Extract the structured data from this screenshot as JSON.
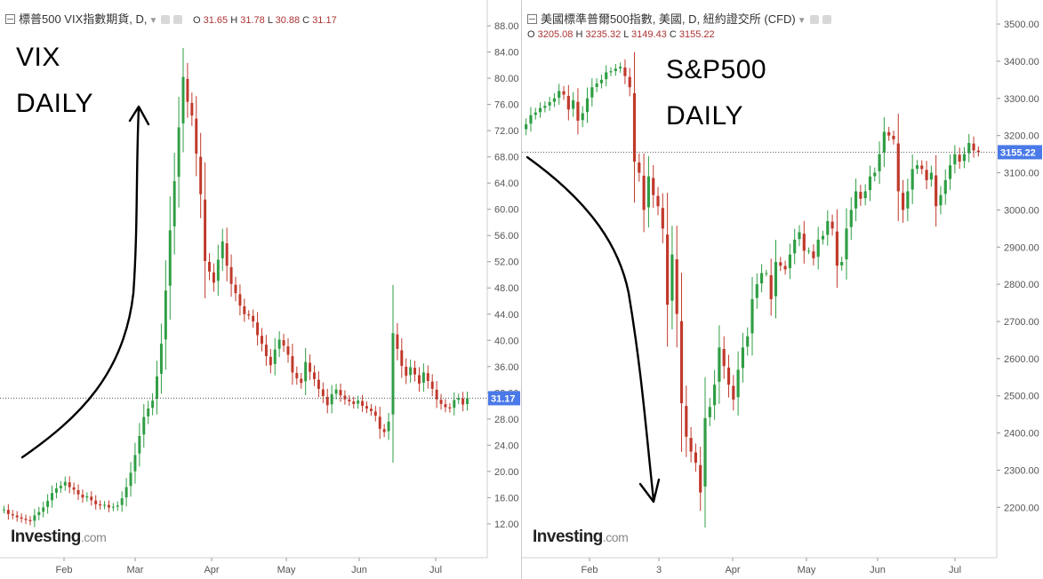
{
  "chart_data": [
    {
      "type": "candlestick",
      "title": "標普500 VIX指數期貨, D,",
      "ohlc_labels": {
        "o": "31.65",
        "h": "31.78",
        "l": "30.88",
        "c": "31.17"
      },
      "annotation_lines": [
        "VIX",
        "DAILY"
      ],
      "watermark": "Investing",
      "watermark_suffix": ".com",
      "last_price": "31.17",
      "y_ticks": [
        "88.00",
        "84.00",
        "80.00",
        "76.00",
        "72.00",
        "68.00",
        "64.00",
        "60.00",
        "56.00",
        "52.00",
        "48.00",
        "44.00",
        "40.00",
        "36.00",
        "32.00",
        "28.00",
        "24.00",
        "20.00",
        "16.00",
        "12.00"
      ],
      "x_ticks": [
        "Feb",
        "Mar",
        "Apr",
        "May",
        "Jun",
        "Jul"
      ],
      "ylim": [
        10.9,
        89.5
      ],
      "close_series": [
        14.2,
        13.5,
        13.3,
        13.0,
        12.8,
        12.6,
        12.4,
        13.3,
        13.8,
        14.5,
        15.5,
        16.7,
        17.4,
        17.8,
        18.4,
        17.6,
        17.2,
        16.5,
        16.0,
        16.2,
        15.6,
        15.0,
        14.8,
        14.9,
        14.5,
        14.6,
        14.8,
        15.9,
        17.6,
        19.8,
        22.5,
        25.4,
        28.3,
        29.6,
        30.8,
        34.5,
        39.5,
        47.6,
        56.8,
        64.3,
        72.5,
        80.2,
        76.4,
        74.3,
        68.5,
        62.3,
        52.1,
        50.5,
        48.8,
        52.3,
        55.1,
        51.4,
        48.6,
        47.2,
        45.3,
        44.0,
        43.8,
        42.9,
        40.8,
        39.5,
        37.6,
        36.2,
        38.6,
        40.1,
        39.2,
        37.8,
        35.1,
        34.2,
        33.5,
        36.7,
        35.2,
        34.1,
        32.6,
        31.5,
        30.1,
        31.8,
        32.5,
        31.6,
        31.0,
        30.7,
        30.3,
        30.8,
        30.0,
        29.6,
        29.2,
        28.5,
        26.5,
        26.0,
        27.6,
        41.1,
        38.7,
        36.1,
        34.6,
        35.9,
        34.8,
        33.4,
        35.1,
        33.8,
        32.6,
        31.0,
        30.3,
        29.8,
        29.6,
        30.9,
        31.2,
        30.2,
        31.17
      ]
    },
    {
      "type": "candlestick",
      "title": "美國標準普爾500指數, 美國, D, 紐約證交所 (CFD)",
      "ohlc_labels": {
        "o": "3205.08",
        "h": "3235.32",
        "l": "3149.43",
        "c": "3155.22"
      },
      "annotation_lines": [
        "S&P500",
        "DAILY"
      ],
      "watermark": "Investing",
      "watermark_suffix": ".com",
      "last_price": "3155.22",
      "y_ticks": [
        "3500.00",
        "3400.00",
        "3300.00",
        "3200.00",
        "3100.00",
        "3000.00",
        "2900.00",
        "2800.00",
        "2700.00",
        "2600.00",
        "2500.00",
        "2400.00",
        "2300.00",
        "2200.00"
      ],
      "x_ticks": [
        "Feb",
        "3",
        "Apr",
        "May",
        "Jun",
        "Jul"
      ],
      "ylim": [
        2153,
        3524
      ],
      "close_series": [
        3230,
        3255,
        3262,
        3274,
        3280,
        3290,
        3300,
        3320,
        3310,
        3270,
        3295,
        3240,
        3260,
        3300,
        3330,
        3340,
        3350,
        3370,
        3373,
        3380,
        3385,
        3360,
        3330,
        3130,
        3100,
        3000,
        3090,
        3040,
        3010,
        2950,
        2745,
        2880,
        2720,
        2480,
        2390,
        2350,
        2320,
        2240,
        2440,
        2470,
        2530,
        2630,
        2580,
        2530,
        2490,
        2570,
        2630,
        2660,
        2760,
        2800,
        2830,
        2830,
        2760,
        2860,
        2850,
        2840,
        2880,
        2920,
        2940,
        2890,
        2890,
        2870,
        2920,
        2930,
        2970,
        2950,
        2850,
        2860,
        2950,
        3000,
        3050,
        3030,
        3050,
        3090,
        3100,
        3150,
        3210,
        3200,
        3190,
        3050,
        3000,
        3050,
        3110,
        3120,
        3110,
        3080,
        3100,
        3010,
        3040,
        3080,
        3120,
        3150,
        3130,
        3150,
        3180,
        3160,
        3155.22
      ]
    }
  ]
}
